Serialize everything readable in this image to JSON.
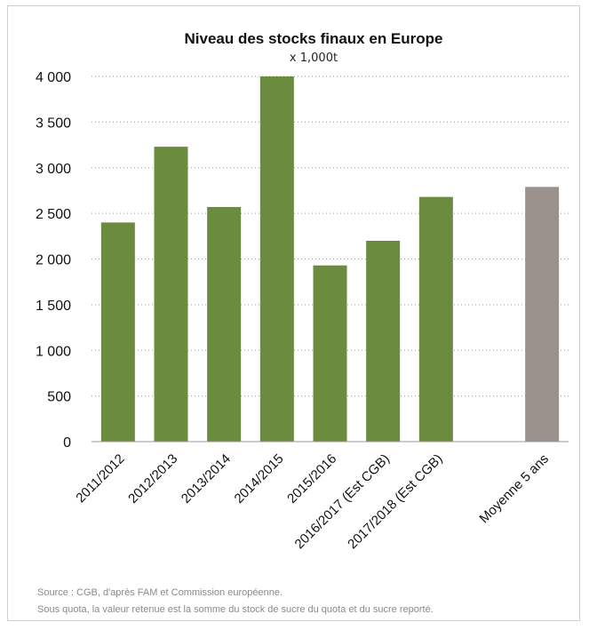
{
  "chart_data": {
    "type": "bar",
    "title": "Niveau des stocks finaux en Europe",
    "subtitle": "x 1,000t",
    "categories": [
      "2011/2012",
      "2012/2013",
      "2013/2014",
      "2014/2015",
      "2015/2016",
      "2016/2017 (Est CGB)",
      "2017/2018 (Est CGB)",
      "",
      "Moyenne 5 ans"
    ],
    "values": [
      2400,
      3230,
      2570,
      4000,
      1930,
      2200,
      2680,
      null,
      2790
    ],
    "ylim": [
      0,
      4000
    ],
    "yticks": [
      0,
      500,
      1000,
      1500,
      2000,
      2500,
      3000,
      3500,
      4000
    ],
    "ytick_labels": [
      "0",
      "500",
      "1 000",
      "1 500",
      "2 000",
      "2 500",
      "3 000",
      "3 500",
      "4 000"
    ],
    "grid": true,
    "colors": {
      "bar": "#6b8c3e",
      "average_bar": "#9a918d"
    }
  },
  "source_note": "Source : CGB, d'après FAM et Commission européenne.",
  "quota_note": "Sous quota, la valeur retenue est la somme du stock de sucre du quota et du sucre reporté."
}
